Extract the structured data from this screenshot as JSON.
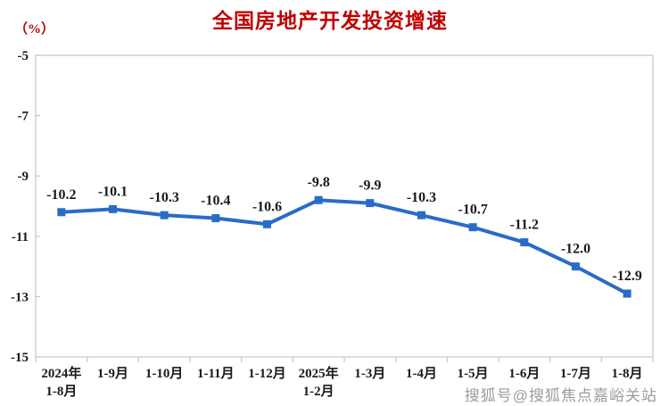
{
  "chart_data": {
    "type": "line",
    "title": "全国房地产开发投资增速",
    "unit_label": "（%）",
    "categories": [
      "2024年\n1-8月",
      "1-9月",
      "1-10月",
      "1-11月",
      "1-12月",
      "2025年\n1-2月",
      "1-3月",
      "1-4月",
      "1-5月",
      "1-6月",
      "1-7月",
      "1-8月"
    ],
    "values": [
      -10.2,
      -10.1,
      -10.3,
      -10.4,
      -10.6,
      -9.8,
      -9.9,
      -10.3,
      -10.7,
      -11.2,
      -12.0,
      -12.9
    ],
    "data_labels": [
      "-10.2",
      "-10.1",
      "-10.3",
      "-10.4",
      "-10.6",
      "-9.8",
      "-9.9",
      "-10.3",
      "-10.7",
      "-11.2",
      "-12.0",
      "-12.9"
    ],
    "xlabel": "",
    "ylabel": "（%）",
    "ylim": [
      -15,
      -5
    ],
    "yticks": [
      -5,
      -7,
      -9,
      -11,
      -13,
      -15
    ],
    "grid": false,
    "legend_position": "none",
    "marker": "square",
    "colors": {
      "line": "#2A6BC8",
      "marker": "#2A6BC8",
      "title": "#C00000",
      "text": "#1A1A1A",
      "axis": "#C6C6C6"
    }
  },
  "watermark": {
    "text": "搜狐号@搜狐焦点嘉峪关站",
    "color": "#9C9C9C"
  }
}
